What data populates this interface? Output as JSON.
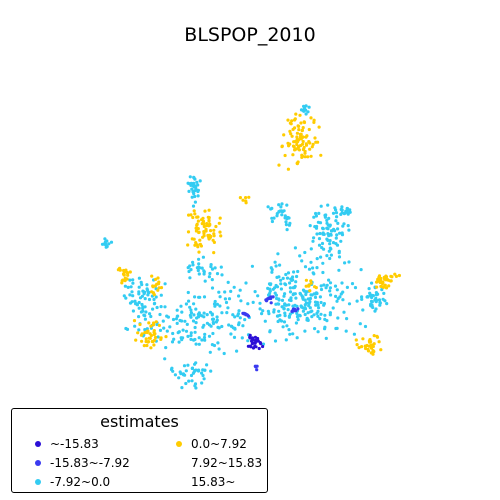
{
  "title": "BLSPOP_2010",
  "legend": {
    "title": "estimates",
    "items": [
      {
        "label": "~-15.83",
        "color": "#2b0fd6"
      },
      {
        "label": "-15.83~-7.92",
        "color": "#3a3af0"
      },
      {
        "label": "-7.92~0.0",
        "color": "#33ccf2"
      },
      {
        "label": "0.0~7.92",
        "color": "#ffcc00"
      },
      {
        "label": "7.92~15.83",
        "color": null
      },
      {
        "label": "15.83~",
        "color": null
      }
    ]
  }
}
